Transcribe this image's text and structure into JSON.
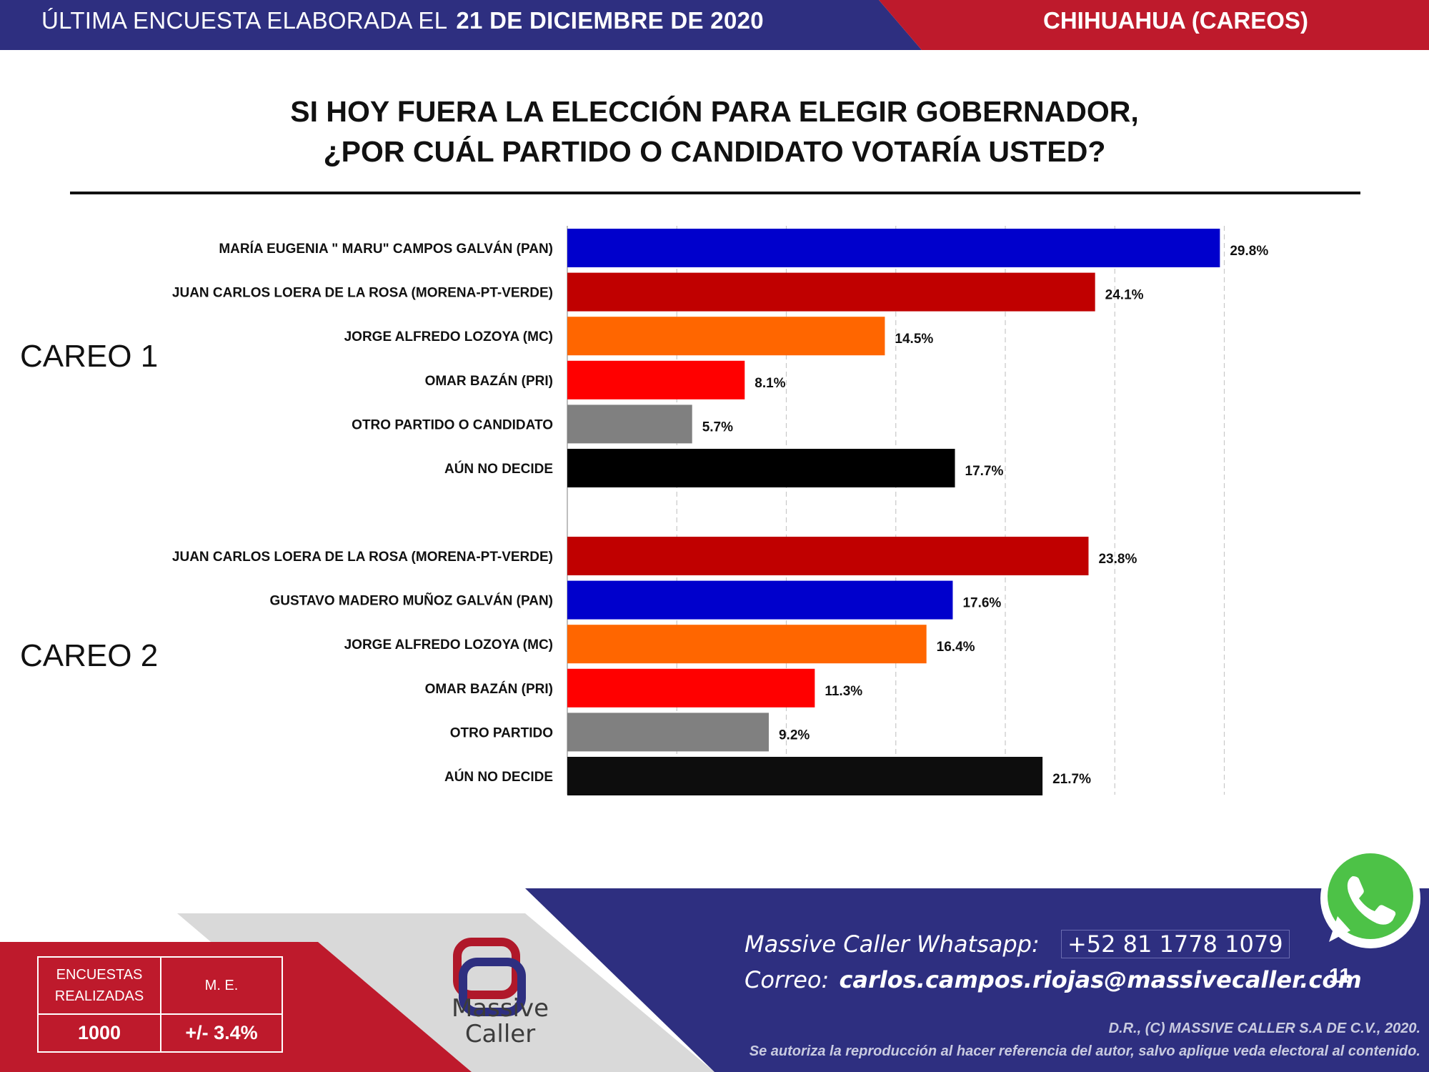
{
  "header": {
    "label": "ÚLTIMA ENCUESTA ELABORADA EL",
    "date": "21 DE DICIEMBRE DE 2020",
    "region": "CHIHUAHUA (CAREOS)"
  },
  "title": {
    "line1": "SI HOY FUERA LA ELECCIÓN PARA ELEGIR GOBERNADOR,",
    "line2": "¿POR CUÁL PARTIDO O CANDIDATO VOTARÍA USTED?"
  },
  "groups": {
    "careo1": "CAREO 1",
    "careo2": "CAREO 2"
  },
  "chart_data": {
    "type": "bar",
    "orientation": "horizontal",
    "xlim": [
      0,
      30
    ],
    "grid": "vertical dashed",
    "series": [
      {
        "name": "CAREO 1",
        "categories": [
          "MARÍA EUGENIA \" MARU\" CAMPOS  GALVÁN (PAN)",
          "JUAN CARLOS LOERA DE LA ROSA (MORENA-PT-VERDE)",
          "JORGE ALFREDO LOZOYA (MC)",
          "OMAR BAZÁN (PRI)",
          "OTRO PARTIDO O CANDIDATO",
          "AÚN NO DECIDE"
        ],
        "values": [
          29.8,
          24.1,
          14.5,
          8.1,
          5.7,
          17.7
        ],
        "labels": [
          "29.8%",
          "24.1%",
          "14.5%",
          "8.1%",
          "5.7%",
          "17.7%"
        ],
        "colors": [
          "#0000cc",
          "#c00000",
          "#ff6600",
          "#ff0000",
          "#808080",
          "#000000"
        ]
      },
      {
        "name": "CAREO 2",
        "categories": [
          "JUAN CARLOS LOERA DE LA ROSA (MORENA-PT-VERDE)",
          "GUSTAVO MADERO MUÑOZ  GALVÁN (PAN)",
          "JORGE ALFREDO LOZOYA (MC)",
          "OMAR BAZÁN (PRI)",
          "OTRO PARTIDO",
          "AÚN NO DECIDE"
        ],
        "values": [
          23.8,
          17.6,
          16.4,
          11.3,
          9.2,
          21.7
        ],
        "labels": [
          "23.8%",
          "17.6%",
          "16.4%",
          "11.3%",
          "9.2%",
          "21.7%"
        ],
        "colors": [
          "#c00000",
          "#0000cc",
          "#ff6600",
          "#ff0000",
          "#808080",
          "#0d0d0d"
        ]
      }
    ]
  },
  "stats": {
    "surveys_label_1": "ENCUESTAS",
    "surveys_label_2": "REALIZADAS",
    "me_label": "M. E.",
    "surveys_value": "1000",
    "me_value": "+/- 3.4%"
  },
  "logo": {
    "line1": "Massive",
    "line2": "Caller"
  },
  "contact": {
    "whatsapp_label": "Massive Caller Whatsapp:",
    "whatsapp_number": "+52 81 1778 1079",
    "email_label": "Correo:",
    "email": "carlos.campos.riojas@massivecaller.com"
  },
  "page_number": "11",
  "copyright": {
    "line1": "D.R., (C) MASSIVE CALLER S.A DE C.V., 2020.",
    "line2": "Se autoriza la reproducción al hacer referencia del autor, salvo aplique veda electoral al contenido."
  },
  "colors": {
    "navy": "#2e2f80",
    "red": "#be1a2c",
    "whatsapp_green": "#4dc247"
  }
}
